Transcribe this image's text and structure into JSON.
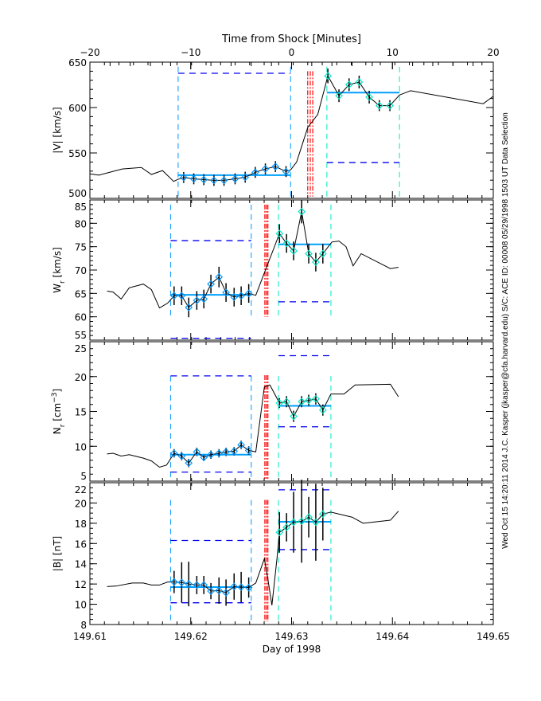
{
  "chart_data": {
    "type": "line",
    "top_axis": {
      "label": "Time from Shock [Minutes]",
      "range": [
        -20,
        20
      ],
      "ticks": [
        -20,
        -10,
        0,
        10,
        20
      ],
      "tick_labels": [
        "−20",
        "−10",
        "0",
        "10",
        "20"
      ]
    },
    "bottom_axis": {
      "label": "Day of 1998",
      "range": [
        149.61,
        149.65
      ],
      "ticks": [
        149.61,
        149.62,
        149.63,
        149.64,
        149.65
      ],
      "tick_labels": [
        "149.61",
        "149.62",
        "149.63",
        "149.64",
        "149.65"
      ]
    },
    "side_text": "Wed Oct 15 14:20:11 2014   J.C. Kasper (jkasper@cfa.harvard.edu)   S/C: ACE ID: 00008 05/29/1998   1503 UT Data Selection",
    "colors": {
      "line": "#000000",
      "pre": "#0099ff",
      "post": "#00e8c8",
      "bounds": "#0000ee",
      "shock": "#ff0000",
      "mean": "#00a0ff"
    },
    "panels": [
      {
        "ylabel": {
          "main": "|V| [km/s]",
          "sub": "",
          "after": "",
          "sup": "",
          "close": ""
        },
        "ylim": [
          500,
          650
        ],
        "yticks": [
          500,
          550,
          600,
          650
        ],
        "yminor": 10,
        "line": [
          [
            -20,
            527
          ],
          [
            -19.1,
            525.6
          ],
          [
            -18.1,
            528.5
          ],
          [
            -16.8,
            532.3
          ],
          [
            -14.9,
            534
          ],
          [
            -13.9,
            526.3
          ],
          [
            -12.8,
            530.6
          ],
          [
            -11.7,
            518.7
          ],
          [
            -11.25,
            521
          ],
          [
            -10.7,
            523
          ],
          [
            -9.7,
            521.5
          ],
          [
            -8.7,
            520.6
          ],
          [
            -7.7,
            519.8
          ],
          [
            -6.7,
            519.8
          ],
          [
            -5.6,
            521.5
          ],
          [
            -4.6,
            523.3
          ],
          [
            -3.6,
            528.6
          ],
          [
            -2.6,
            532.4
          ],
          [
            -1.6,
            535
          ],
          [
            -0.55,
            529.5
          ],
          [
            -0.1,
            531.3
          ],
          [
            0.5,
            540
          ],
          [
            1.6,
            578
          ],
          [
            2.6,
            592.5
          ],
          [
            3.6,
            634.8
          ],
          [
            4.7,
            613
          ],
          [
            5.7,
            625.2
          ],
          [
            6.7,
            628.1
          ],
          [
            7.7,
            611.5
          ],
          [
            8.7,
            602.1
          ],
          [
            9.75,
            602.1
          ],
          [
            10.7,
            613.8
          ],
          [
            11.8,
            618.5
          ],
          [
            19,
            604.2
          ],
          [
            20,
            612.4
          ]
        ],
        "pre": {
          "x": [
            -10.7,
            -9.7,
            -8.7,
            -7.7,
            -6.7,
            -5.6,
            -4.6,
            -3.6,
            -2.6,
            -1.6,
            -0.55
          ],
          "y": [
            523,
            521.5,
            520.6,
            519.8,
            519.8,
            521.5,
            523.3,
            528.6,
            532.4,
            535,
            529.5
          ],
          "err": [
            6,
            6,
            6,
            6,
            6,
            6,
            6,
            6,
            6,
            6,
            6
          ],
          "window": [
            -11.25,
            -0.1
          ],
          "mean": 525.5,
          "bounds": [
            637.7
          ],
          "vline_range": [
            500,
            645
          ]
        },
        "post": {
          "x": [
            3.6,
            4.7,
            5.7,
            6.7,
            7.7,
            8.7,
            9.75
          ],
          "y": [
            634.8,
            613,
            625.2,
            628.1,
            611.5,
            602.1,
            602.1
          ],
          "err": [
            8,
            7,
            7,
            7,
            7,
            6,
            6
          ],
          "window": [
            3.5,
            10.7
          ],
          "mean": 616.5,
          "bounds": [
            539.4
          ],
          "vline_range": [
            500,
            645
          ]
        },
        "shock_lines": {
          "x": [
            1.6,
            1.85,
            2.1
          ],
          "range": [
            502,
            640
          ]
        }
      },
      {
        "ylabel": {
          "main": "W",
          "sub": "r",
          "after": " [km/s]",
          "sup": "",
          "close": ""
        },
        "ylim": [
          55,
          85
        ],
        "yticks": [
          55,
          60,
          65,
          70,
          75,
          80,
          85
        ],
        "yminor": 1,
        "line": [
          [
            -18.3,
            65.5
          ],
          [
            -17.7,
            65.3
          ],
          [
            -16.9,
            63.8
          ],
          [
            -16.1,
            66.2
          ],
          [
            -14.7,
            67
          ],
          [
            -13.9,
            65.8
          ],
          [
            -13.1,
            61.9
          ],
          [
            -12.3,
            62.9
          ],
          [
            -11.65,
            64.5
          ],
          [
            -10.9,
            64.5
          ],
          [
            -10.2,
            62
          ],
          [
            -9.4,
            63.5
          ],
          [
            -8.7,
            63.8
          ],
          [
            -8.0,
            67
          ],
          [
            -7.2,
            68.5
          ],
          [
            -6.5,
            65.2
          ],
          [
            -5.7,
            64.2
          ],
          [
            -5.0,
            64.5
          ],
          [
            -4.25,
            65
          ],
          [
            -3.55,
            64.6
          ],
          [
            -2.7,
            69.4
          ],
          [
            -1.2,
            77.8
          ],
          [
            -0.5,
            75.7
          ],
          [
            0.2,
            74.1
          ],
          [
            1.0,
            82.5
          ],
          [
            1.7,
            73.5
          ],
          [
            2.4,
            71.7
          ],
          [
            3.1,
            73.5
          ],
          [
            4.0,
            76
          ],
          [
            4.7,
            76.2
          ],
          [
            5.4,
            75
          ],
          [
            6.1,
            70.9
          ],
          [
            6.9,
            73.5
          ],
          [
            9.8,
            70.3
          ],
          [
            10.6,
            70.6
          ]
        ],
        "pre": {
          "x": [
            -11.65,
            -10.9,
            -10.2,
            -9.4,
            -8.7,
            -8.0,
            -7.2,
            -6.5,
            -5.7,
            -5.0,
            -4.25
          ],
          "y": [
            64.5,
            64.5,
            62,
            63.5,
            63.8,
            67,
            68.5,
            65.2,
            64.2,
            64.5,
            65
          ],
          "err": [
            2,
            2,
            2.1,
            2,
            2,
            2,
            2.2,
            2,
            2,
            2,
            2
          ],
          "window": [
            -12,
            -4
          ],
          "mean": 64.7,
          "bounds": [
            76.3,
            55.4
          ],
          "vline_range": [
            60,
            84
          ]
        },
        "post": {
          "x": [
            -1.2,
            -0.5,
            0.2,
            1.0,
            1.7,
            2.4,
            3.1
          ],
          "y": [
            77.8,
            75.7,
            74.1,
            82.5,
            73.5,
            71.7,
            73.5
          ],
          "err": [
            2,
            2,
            2,
            2.5,
            2.1,
            2,
            2.1
          ],
          "window": [
            -1.3,
            3.9
          ],
          "mean": 75.5,
          "bounds": [
            63.2
          ],
          "vline_range": [
            60,
            84
          ]
        },
        "shock_lines": {
          "x": [
            -2.65,
            -2.5,
            -2.35
          ],
          "range": [
            60,
            84
          ]
        }
      },
      {
        "ylabel": {
          "main": "N",
          "sub": "r",
          "after": " [cm",
          "sup": "−3",
          "close": "]"
        },
        "ylim": [
          5,
          25
        ],
        "yticks": [
          5,
          10,
          15,
          20,
          25
        ],
        "yminor": 1,
        "line": [
          [
            -18.3,
            8.9
          ],
          [
            -17.7,
            9.0
          ],
          [
            -16.9,
            8.6
          ],
          [
            -16.1,
            8.8
          ],
          [
            -14.7,
            8.3
          ],
          [
            -13.9,
            7.9
          ],
          [
            -13.1,
            7.0
          ],
          [
            -12.4,
            7.3
          ],
          [
            -11.65,
            9.0
          ],
          [
            -10.9,
            8.6
          ],
          [
            -10.2,
            7.6
          ],
          [
            -9.4,
            9.2
          ],
          [
            -8.7,
            8.4
          ],
          [
            -8.0,
            8.8
          ],
          [
            -7.2,
            9.0
          ],
          [
            -6.5,
            9.2
          ],
          [
            -5.7,
            9.3
          ],
          [
            -5.0,
            10.2
          ],
          [
            -4.25,
            9.4
          ],
          [
            -3.55,
            9.2
          ],
          [
            -2.7,
            18.5
          ],
          [
            -2.15,
            18.8
          ],
          [
            -1.2,
            16.2
          ],
          [
            -0.5,
            16.4
          ],
          [
            0.2,
            14.3
          ],
          [
            1.0,
            16.4
          ],
          [
            1.7,
            16.6
          ],
          [
            2.4,
            16.8
          ],
          [
            3.1,
            15.2
          ],
          [
            3.9,
            17.5
          ],
          [
            5.2,
            17.5
          ],
          [
            6.3,
            18.8
          ],
          [
            9.8,
            18.9
          ],
          [
            10.6,
            17.1
          ]
        ],
        "pre": {
          "x": [
            -11.65,
            -10.9,
            -10.2,
            -9.4,
            -8.7,
            -8.0,
            -7.2,
            -6.5,
            -5.7,
            -5.0,
            -4.25
          ],
          "y": [
            9.0,
            8.6,
            7.6,
            9.2,
            8.4,
            8.8,
            9.0,
            9.2,
            9.3,
            10.2,
            9.4
          ],
          "err": [
            0.6,
            0.6,
            0.6,
            0.6,
            0.5,
            0.6,
            0.6,
            0.6,
            0.6,
            0.6,
            0.6
          ],
          "window": [
            -12,
            -4
          ],
          "mean": 8.8,
          "bounds": [
            20.1,
            6.3
          ],
          "vline_range": [
            5.3,
            20.1
          ]
        },
        "post": {
          "x": [
            -1.2,
            -0.5,
            0.2,
            1.0,
            1.7,
            2.4,
            3.1
          ],
          "y": [
            16.2,
            16.4,
            14.3,
            16.4,
            16.6,
            16.8,
            15.2
          ],
          "err": [
            0.7,
            0.8,
            0.8,
            0.8,
            0.8,
            0.8,
            0.8
          ],
          "window": [
            -1.3,
            3.9
          ],
          "mean": 15.8,
          "bounds": [
            23.0,
            12.8
          ],
          "vline_range": [
            5.3,
            20.1
          ]
        },
        "shock_lines": {
          "x": [
            -2.65,
            -2.5,
            -2.35
          ],
          "range": [
            5.2,
            20.2
          ]
        }
      },
      {
        "ylabel": {
          "main": "|B| [nT]",
          "sub": "",
          "after": "",
          "sup": "",
          "close": ""
        },
        "ylim": [
          8,
          22
        ],
        "yticks": [
          8,
          10,
          12,
          14,
          16,
          18,
          20,
          22
        ],
        "yminor": 0.5,
        "line": [
          [
            -18.3,
            11.75
          ],
          [
            -17.4,
            11.8
          ],
          [
            -15.8,
            12.1
          ],
          [
            -14.7,
            12.1
          ],
          [
            -13.9,
            11.9
          ],
          [
            -13.1,
            11.9
          ],
          [
            -12.3,
            12.2
          ],
          [
            -11.65,
            12.2
          ],
          [
            -10.9,
            12.15
          ],
          [
            -10.2,
            12.0
          ],
          [
            -9.4,
            11.9
          ],
          [
            -8.7,
            11.9
          ],
          [
            -8.0,
            11.3
          ],
          [
            -7.2,
            11.35
          ],
          [
            -6.5,
            11.15
          ],
          [
            -5.7,
            11.75
          ],
          [
            -5.0,
            11.7
          ],
          [
            -4.25,
            11.65
          ],
          [
            -3.55,
            12.1
          ],
          [
            -2.7,
            14.5
          ],
          [
            -2.4,
            12.8
          ],
          [
            -1.95,
            9.9
          ],
          [
            -1.45,
            14.5
          ],
          [
            -1.2,
            17.1
          ],
          [
            -0.5,
            17.6
          ],
          [
            0.2,
            18.1
          ],
          [
            1.0,
            18.2
          ],
          [
            1.7,
            18.6
          ],
          [
            2.4,
            18.1
          ],
          [
            3.1,
            18.9
          ],
          [
            3.9,
            19.1
          ],
          [
            6.0,
            18.6
          ],
          [
            7.1,
            18.0
          ],
          [
            9.8,
            18.3
          ],
          [
            10.6,
            19.2
          ]
        ],
        "pre": {
          "x": [
            -11.65,
            -10.9,
            -10.2,
            -9.4,
            -8.7,
            -8.0,
            -7.2,
            -6.5,
            -5.7,
            -5.0,
            -4.25
          ],
          "y": [
            12.2,
            12.15,
            12.0,
            11.9,
            11.9,
            11.3,
            11.35,
            11.15,
            11.75,
            11.7,
            11.65
          ],
          "err": [
            1.1,
            2.0,
            2.2,
            0.9,
            0.9,
            0.8,
            1.3,
            1.3,
            1.3,
            1.5,
            1.0
          ],
          "window": [
            -12,
            -4
          ],
          "mean": 11.7,
          "bounds": [
            16.3,
            10.15
          ],
          "vline_range": [
            8.3,
            20.3
          ]
        },
        "post": {
          "x": [
            -1.2,
            -0.5,
            0.2,
            1.0,
            1.7,
            2.4,
            3.1
          ],
          "y": [
            17.1,
            17.6,
            18.1,
            18.2,
            18.6,
            18.1,
            18.9
          ],
          "err": [
            2.0,
            1.4,
            3.0,
            4.1,
            2.0,
            3.8,
            2.6
          ],
          "window": [
            -1.3,
            3.9
          ],
          "mean": 18.15,
          "bounds": [
            21.3,
            15.4
          ],
          "vline_range": [
            8.3,
            20.3
          ]
        },
        "shock_lines": {
          "x": [
            -2.65,
            -2.5,
            -2.35
          ],
          "range": [
            8.3,
            20.3
          ]
        }
      }
    ]
  }
}
